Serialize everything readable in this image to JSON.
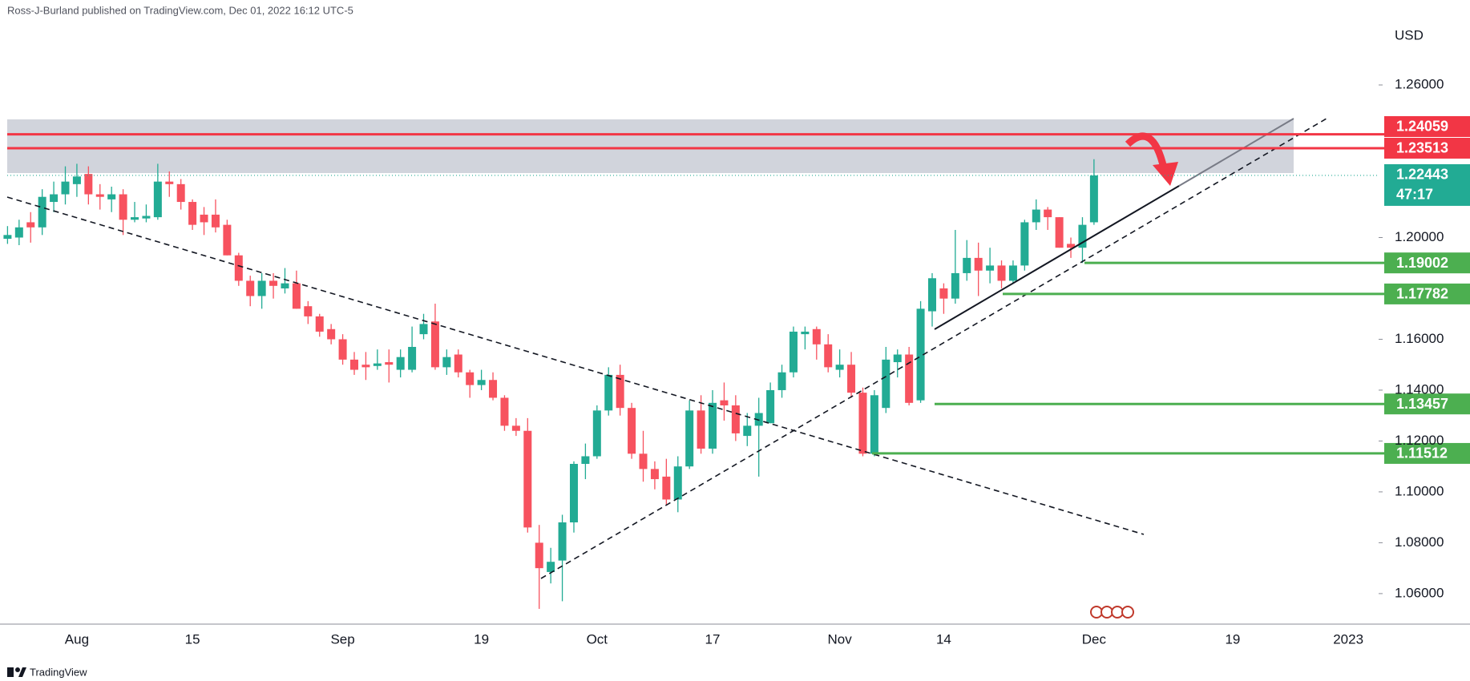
{
  "chart_data": {
    "type": "candlestick",
    "header": "Ross-J-Burland published on TradingView.com, Dec 01, 2022 16:12 UTC-5",
    "currency": "USD",
    "footer": "TradingView",
    "up_color": "#22ab94",
    "down_color": "#f7525f",
    "grid": false,
    "categories": [
      null,
      null,
      null,
      null,
      null,
      null,
      "Aug",
      null,
      null,
      null,
      null,
      null,
      null,
      null,
      null,
      null,
      "15",
      null,
      null,
      null,
      null,
      null,
      null,
      null,
      null,
      null,
      null,
      null,
      null,
      "Sep",
      null,
      null,
      null,
      null,
      null,
      null,
      null,
      null,
      null,
      null,
      null,
      "19",
      null,
      null,
      null,
      null,
      null,
      null,
      null,
      null,
      null,
      "Oct",
      null,
      null,
      null,
      null,
      null,
      null,
      null,
      null,
      null,
      "17",
      null,
      null,
      null,
      null,
      null,
      null,
      null,
      null,
      null,
      null,
      "Nov",
      null,
      null,
      null,
      null,
      null,
      null,
      null,
      null,
      "14",
      null,
      null,
      null,
      null,
      null,
      null,
      null,
      null,
      null,
      null,
      null,
      null,
      "Dec",
      null,
      null,
      null,
      null,
      null,
      null,
      null,
      null,
      null,
      null,
      null,
      "19",
      null,
      null,
      null,
      null,
      null,
      null,
      null,
      null,
      null,
      "2023"
    ],
    "open": [
      1.1995,
      1.2,
      1.206,
      1.204,
      1.214,
      1.217,
      1.221,
      1.225,
      1.217,
      1.215,
      1.217,
      1.207,
      1.2075,
      1.208,
      1.222,
      1.221,
      1.214,
      1.209,
      1.209,
      1.205,
      1.193,
      1.183,
      1.177,
      1.183,
      1.18,
      1.182,
      1.173,
      1.169,
      1.164,
      1.16,
      1.152,
      1.15,
      1.1495,
      1.151,
      1.148,
      1.148,
      1.162,
      1.167,
      1.149,
      1.154,
      1.147,
      1.142,
      1.144,
      1.137,
      1.126,
      1.124,
      1.08,
      1.0685,
      1.073,
      1.088,
      1.111,
      1.114,
      1.132,
      1.146,
      1.133,
      1.115,
      1.109,
      1.106,
      1.097,
      1.11,
      1.132,
      1.117,
      1.136,
      1.134,
      1.122,
      1.126,
      1.127,
      1.14,
      1.147,
      1.162,
      1.164,
      1.158,
      1.148,
      1.15,
      1.139,
      1.115,
      1.133,
      1.151,
      1.154,
      1.136,
      1.171,
      1.18,
      1.176,
      1.186,
      1.192,
      1.187,
      1.189,
      1.183,
      1.189,
      1.206,
      1.211,
      1.208,
      1.1975,
      1.196,
      1.206,
      null,
      null,
      null,
      null,
      null,
      null,
      null,
      null,
      null,
      null,
      null,
      null,
      null,
      null,
      null,
      null,
      null,
      null,
      null,
      null,
      null,
      null
    ],
    "high": [
      1.2045,
      1.207,
      1.21,
      1.219,
      1.222,
      1.228,
      1.229,
      1.228,
      1.221,
      1.22,
      1.219,
      1.214,
      1.213,
      1.229,
      1.226,
      1.223,
      1.215,
      1.212,
      1.215,
      1.207,
      1.194,
      1.185,
      1.186,
      1.186,
      1.188,
      1.187,
      1.175,
      1.17,
      1.166,
      1.162,
      1.155,
      1.155,
      1.156,
      1.156,
      1.156,
      1.165,
      1.17,
      1.174,
      1.156,
      1.156,
      1.148,
      1.148,
      1.147,
      1.138,
      1.129,
      1.129,
      1.087,
      1.078,
      1.091,
      1.112,
      1.119,
      1.134,
      1.149,
      1.15,
      1.135,
      1.124,
      1.112,
      1.113,
      1.114,
      1.136,
      1.138,
      1.14,
      1.143,
      1.138,
      1.131,
      1.137,
      1.143,
      1.15,
      1.165,
      1.165,
      1.165,
      1.162,
      1.156,
      1.155,
      1.141,
      1.14,
      1.157,
      1.156,
      1.157,
      1.175,
      1.186,
      1.182,
      1.203,
      1.199,
      1.198,
      1.196,
      1.191,
      1.191,
      1.207,
      1.215,
      1.212,
      1.208,
      1.2,
      1.208,
      1.2308,
      null,
      null,
      null,
      null,
      null,
      null,
      null,
      null,
      null,
      null,
      null,
      null,
      null,
      null,
      null,
      null,
      null,
      null,
      null,
      null,
      null,
      null
    ],
    "low": [
      1.1975,
      1.197,
      1.198,
      1.201,
      1.21,
      1.213,
      1.216,
      1.213,
      1.211,
      1.21,
      1.201,
      1.206,
      1.206,
      1.207,
      1.216,
      1.211,
      1.203,
      1.201,
      1.202,
      1.193,
      1.181,
      1.173,
      1.172,
      1.176,
      1.178,
      1.172,
      1.166,
      1.161,
      1.158,
      1.15,
      1.146,
      1.144,
      1.148,
      1.143,
      1.145,
      1.147,
      1.16,
      1.148,
      1.146,
      1.145,
      1.137,
      1.14,
      1.136,
      1.124,
      1.122,
      1.084,
      1.054,
      1.064,
      1.057,
      1.084,
      1.105,
      1.113,
      1.13,
      1.13,
      1.113,
      1.104,
      1.101,
      1.095,
      1.092,
      1.109,
      1.115,
      1.115,
      1.128,
      1.12,
      1.118,
      1.106,
      1.127,
      1.137,
      1.145,
      1.156,
      1.152,
      1.147,
      1.145,
      1.137,
      1.114,
      1.114,
      1.131,
      1.145,
      1.134,
      1.135,
      1.165,
      1.17,
      1.174,
      1.183,
      1.177,
      1.182,
      1.18,
      1.182,
      1.187,
      1.203,
      1.203,
      1.196,
      1.192,
      1.19,
      1.205,
      null,
      null,
      null,
      null,
      null,
      null,
      null,
      null,
      null,
      null,
      null,
      null,
      null,
      null,
      null,
      null,
      null,
      null,
      null,
      null,
      null,
      null
    ],
    "close": [
      1.201,
      1.204,
      1.204,
      1.216,
      1.217,
      1.222,
      1.224,
      1.217,
      1.216,
      1.217,
      1.207,
      1.208,
      1.2085,
      1.222,
      1.221,
      1.214,
      1.205,
      1.206,
      1.204,
      1.193,
      1.183,
      1.177,
      1.183,
      1.181,
      1.182,
      1.172,
      1.169,
      1.163,
      1.16,
      1.152,
      1.148,
      1.149,
      1.1505,
      1.15,
      1.153,
      1.157,
      1.166,
      1.149,
      1.153,
      1.147,
      1.142,
      1.144,
      1.137,
      1.126,
      1.124,
      1.086,
      1.07,
      1.0725,
      1.088,
      1.111,
      1.114,
      1.132,
      1.146,
      1.133,
      1.115,
      1.109,
      1.105,
      1.097,
      1.11,
      1.132,
      1.117,
      1.135,
      1.134,
      1.123,
      1.126,
      1.131,
      1.14,
      1.147,
      1.163,
      1.163,
      1.158,
      1.149,
      1.15,
      1.139,
      1.115,
      1.138,
      1.152,
      1.154,
      1.135,
      1.172,
      1.184,
      1.176,
      1.186,
      1.192,
      1.187,
      1.189,
      1.183,
      1.189,
      1.206,
      1.211,
      1.208,
      1.196,
      1.196,
      1.205,
      1.22443,
      null,
      null,
      null,
      null,
      null,
      null,
      null,
      null,
      null,
      null,
      null,
      null,
      null,
      null,
      null,
      null,
      null,
      null,
      null,
      null,
      null,
      null
    ],
    "countdown": "47:17",
    "ylim": [
      1.048,
      1.2934
    ],
    "yticks": [
      {
        "value": 1.26,
        "label": "1.26000"
      },
      {
        "value": 1.2,
        "label": "1.20000"
      },
      {
        "value": 1.16,
        "label": "1.16000"
      },
      {
        "value": 1.14,
        "label": "1.14000"
      },
      {
        "value": 1.12,
        "label": "1.12000"
      },
      {
        "value": 1.1,
        "label": "1.10000"
      },
      {
        "value": 1.08,
        "label": "1.08000"
      },
      {
        "value": 1.06,
        "label": "1.06000"
      }
    ],
    "levels": [
      {
        "value": 1.24059,
        "color": "#f23645"
      },
      {
        "value": 1.23513,
        "color": "#f23645"
      },
      {
        "value": 1.19002,
        "color": "#4caf50"
      },
      {
        "value": 1.17782,
        "color": "#4caf50"
      },
      {
        "value": 1.13457,
        "color": "#4caf50"
      },
      {
        "value": 1.11512,
        "color": "#4caf50"
      }
    ]
  }
}
